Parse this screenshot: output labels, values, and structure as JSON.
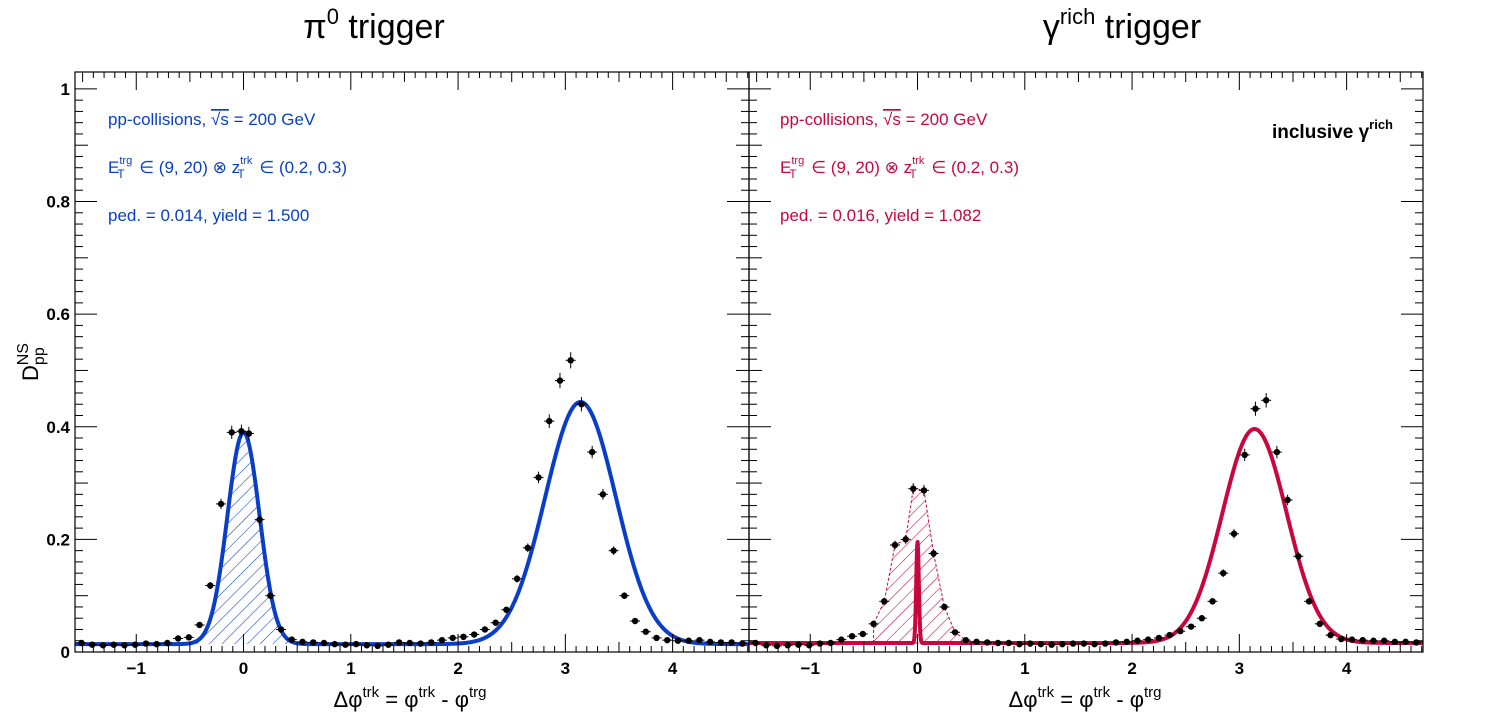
{
  "chart_data": [
    {
      "type": "scatter",
      "title": "π⁰ trigger",
      "title_main": "π",
      "title_sup": "0",
      "title_rest": "trigger",
      "xlabel": "Δφ^trk = φ^trk - φ^trg",
      "ylabel": "D_pp^NS",
      "xlim": [
        -1.571,
        4.712
      ],
      "ylim": [
        0,
        1.03
      ],
      "x_ticks": [
        -1,
        0,
        1,
        2,
        3,
        4
      ],
      "x_tick_labels": [
        "−1",
        "0",
        "1",
        "2",
        "3",
        "4"
      ],
      "y_ticks": [
        0,
        0.2,
        0.4,
        0.6,
        0.8,
        1
      ],
      "y_tick_labels": [
        "0",
        "0.2",
        "0.4",
        "0.6",
        "0.8",
        "1"
      ],
      "color": "#0a3ec8",
      "annotations": {
        "line1_a": "pp-collisions,",
        "line1_b": "√s",
        "line1_c": " = 200 GeV",
        "line2": "E_T^trg ∈ (9, 20) ⊗ z_T^trk ∈ (0.2, 0.3)",
        "line3": "ped. = 0.014, yield = 1.500"
      },
      "fit": {
        "pedestal": 0.014,
        "ns_amp": 0.376,
        "ns_sigma": 0.15,
        "as_amp": 0.43,
        "as_sigma": 0.33
      },
      "series": [
        {
          "x": [
            -1.51,
            -1.41,
            -1.31,
            -1.21,
            -1.11,
            -1.01,
            -0.91,
            -0.81,
            -0.71,
            -0.61,
            -0.51,
            -0.41,
            -0.31,
            -0.21,
            -0.11,
            -0.02,
            0.05,
            0.15,
            0.25,
            0.35,
            0.45,
            0.55,
            0.65,
            0.75,
            0.85,
            0.95,
            1.05,
            1.15,
            1.25,
            1.35,
            1.45,
            1.55,
            1.65,
            1.75,
            1.85,
            1.95,
            2.05,
            2.15,
            2.25,
            2.35,
            2.45,
            2.55,
            2.65,
            2.75,
            2.85,
            2.95,
            3.05,
            3.15,
            3.25,
            3.35,
            3.45,
            3.55,
            3.65,
            3.75,
            3.85,
            3.95,
            4.05,
            4.15,
            4.25,
            4.35,
            4.45,
            4.55,
            4.65
          ],
          "y": [
            0.016,
            0.013,
            0.012,
            0.013,
            0.012,
            0.013,
            0.015,
            0.014,
            0.016,
            0.024,
            0.026,
            0.048,
            0.118,
            0.263,
            0.39,
            0.392,
            0.388,
            0.235,
            0.1,
            0.04,
            0.022,
            0.018,
            0.017,
            0.016,
            0.014,
            0.013,
            0.014,
            0.012,
            0.011,
            0.013,
            0.017,
            0.016,
            0.015,
            0.017,
            0.021,
            0.025,
            0.027,
            0.031,
            0.04,
            0.052,
            0.075,
            0.13,
            0.185,
            0.31,
            0.41,
            0.482,
            0.518,
            0.44,
            0.355,
            0.28,
            0.18,
            0.1,
            0.055,
            0.036,
            0.025,
            0.021,
            0.02,
            0.02,
            0.021,
            0.018,
            0.017,
            0.017,
            0.015
          ]
        }
      ]
    },
    {
      "type": "scatter",
      "title": "γ^rich trigger",
      "title_main": "γ",
      "title_sup": "rich",
      "title_rest": "trigger",
      "xlabel": "Δφ^trk = φ^trk - φ^trg",
      "xlim": [
        -1.571,
        4.712
      ],
      "ylim": [
        0,
        1.03
      ],
      "x_ticks": [
        -1,
        0,
        1,
        2,
        3,
        4
      ],
      "x_tick_labels": [
        "−1",
        "0",
        "1",
        "2",
        "3",
        "4"
      ],
      "color": "#c8073e",
      "annotations": {
        "line1_a": "pp-collisions,",
        "line1_b": "√s",
        "line1_c": " = 200 GeV",
        "line2": "E_T^trg ∈ (9, 20) ⊗ z_T^trk ∈ (0.2, 0.3)",
        "line3": "ped. = 0.016, yield = 1.082",
        "label_main": "inclusive γ",
        "label_sup": "rich"
      },
      "fit": {
        "pedestal": 0.016,
        "ns_amp": 0.18,
        "ns_sigma": 0.012,
        "as_amp": 0.38,
        "as_sigma": 0.3
      },
      "series": [
        {
          "x": [
            -1.51,
            -1.41,
            -1.31,
            -1.21,
            -1.11,
            -1.01,
            -0.91,
            -0.81,
            -0.71,
            -0.61,
            -0.51,
            -0.41,
            -0.31,
            -0.21,
            -0.11,
            -0.04,
            0.06,
            0.15,
            0.25,
            0.35,
            0.45,
            0.55,
            0.65,
            0.75,
            0.85,
            0.95,
            1.05,
            1.15,
            1.25,
            1.35,
            1.45,
            1.55,
            1.65,
            1.75,
            1.85,
            1.95,
            2.05,
            2.15,
            2.25,
            2.35,
            2.45,
            2.55,
            2.65,
            2.75,
            2.85,
            2.95,
            3.05,
            3.15,
            3.25,
            3.35,
            3.45,
            3.55,
            3.65,
            3.75,
            3.85,
            3.95,
            4.05,
            4.15,
            4.25,
            4.35,
            4.45,
            4.55,
            4.65
          ],
          "y": [
            0.016,
            0.012,
            0.011,
            0.012,
            0.013,
            0.012,
            0.015,
            0.016,
            0.022,
            0.028,
            0.032,
            0.05,
            0.09,
            0.19,
            0.2,
            0.29,
            0.287,
            0.175,
            0.08,
            0.035,
            0.021,
            0.018,
            0.017,
            0.016,
            0.016,
            0.014,
            0.015,
            0.014,
            0.013,
            0.014,
            0.015,
            0.015,
            0.014,
            0.015,
            0.017,
            0.018,
            0.02,
            0.022,
            0.025,
            0.03,
            0.037,
            0.045,
            0.06,
            0.09,
            0.14,
            0.21,
            0.35,
            0.432,
            0.447,
            0.355,
            0.27,
            0.17,
            0.09,
            0.05,
            0.03,
            0.023,
            0.022,
            0.021,
            0.02,
            0.02,
            0.018,
            0.018,
            0.017
          ]
        }
      ]
    }
  ]
}
